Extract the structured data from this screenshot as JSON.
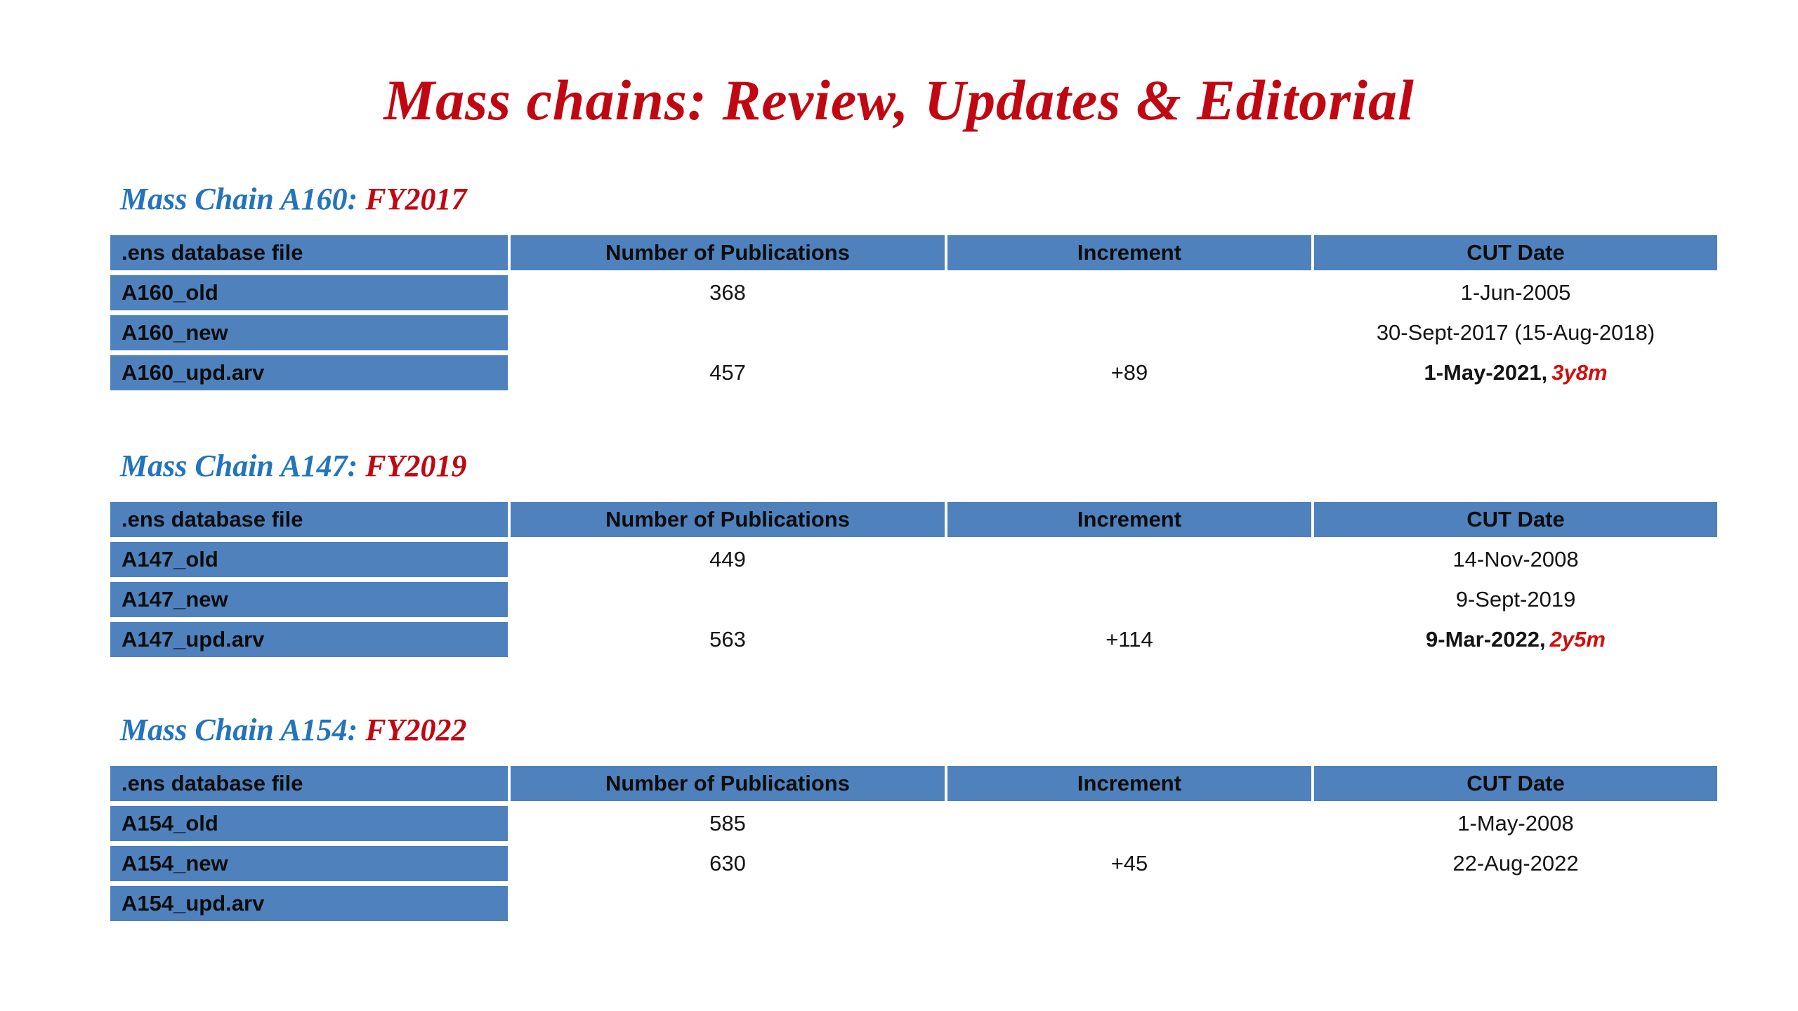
{
  "title": "Mass chains: Review, Updates & Editorial",
  "accent_colors": {
    "title_red": "#c00712",
    "heading_blue": "#2274bd",
    "table_header_blue": "#4f81bd",
    "band_dark": "#d2d7e5",
    "band_light": "#e9ebf3",
    "duration_red": "#cf0f0f"
  },
  "sections": [
    {
      "heading_prefix": "Mass Chain A160: ",
      "heading_fy": "FY2017",
      "columns": [
        ".ens database file",
        "Number of Publications",
        "Increment",
        "CUT Date"
      ],
      "rows": [
        {
          "file": "A160_old",
          "pubs": "368",
          "increment": "",
          "cut_date": "1-Jun-2005",
          "cut_extra": ""
        },
        {
          "file": "A160_new",
          "pubs": "",
          "increment": "",
          "cut_date": "30-Sept-2017 (15-Aug-2018)",
          "cut_extra": ""
        },
        {
          "file": "A160_upd.arv",
          "pubs": "457",
          "increment": "+89",
          "cut_date": "1-May-2021,",
          "cut_extra": "3y8m"
        }
      ]
    },
    {
      "heading_prefix": "Mass Chain A147: ",
      "heading_fy": "FY2019",
      "columns": [
        ".ens database file",
        "Number of Publications",
        "Increment",
        "CUT Date"
      ],
      "rows": [
        {
          "file": "A147_old",
          "pubs": "449",
          "increment": "",
          "cut_date": "14-Nov-2008",
          "cut_extra": ""
        },
        {
          "file": "A147_new",
          "pubs": "",
          "increment": "",
          "cut_date": "9-Sept-2019",
          "cut_extra": ""
        },
        {
          "file": "A147_upd.arv",
          "pubs": "563",
          "increment": "+114",
          "cut_date": "9-Mar-2022,",
          "cut_extra": "2y5m"
        }
      ]
    },
    {
      "heading_prefix": "Mass Chain A154: ",
      "heading_fy": "FY2022",
      "columns": [
        ".ens database file",
        "Number of Publications",
        "Increment",
        "CUT Date"
      ],
      "rows": [
        {
          "file": "A154_old",
          "pubs": "585",
          "increment": "",
          "cut_date": "1-May-2008",
          "cut_extra": ""
        },
        {
          "file": "A154_new",
          "pubs": "630",
          "increment": "+45",
          "cut_date": "22-Aug-2022",
          "cut_extra": ""
        },
        {
          "file": "A154_upd.arv",
          "pubs": "",
          "increment": "",
          "cut_date": "",
          "cut_extra": ""
        }
      ]
    }
  ]
}
